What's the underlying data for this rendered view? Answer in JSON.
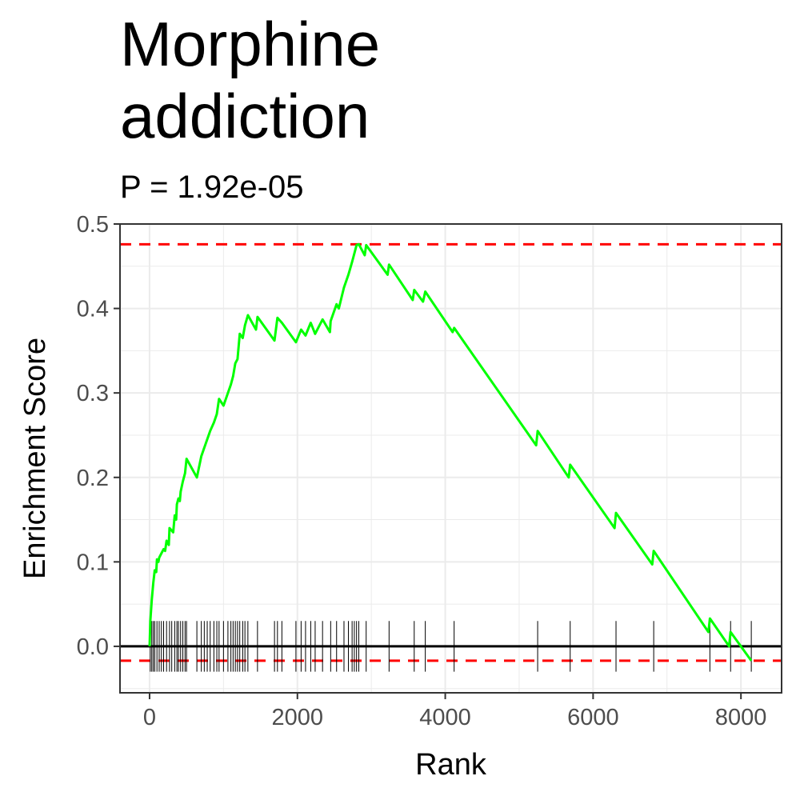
{
  "chart_data": {
    "type": "line",
    "title": "Morphine\naddiction",
    "subtitle": "P = 1.92e-05",
    "xlabel": "Rank",
    "ylabel": "Enrichment Score",
    "xlim": [
      -400,
      8550
    ],
    "ylim": [
      -0.055,
      0.5
    ],
    "xticks": [
      0,
      2000,
      4000,
      6000,
      8000
    ],
    "xtick_labels": [
      "0",
      "2000",
      "4000",
      "6000",
      "8000"
    ],
    "yticks": [
      0.0,
      0.1,
      0.2,
      0.3,
      0.4,
      0.5
    ],
    "ytick_labels": [
      "0.0",
      "0.1",
      "0.2",
      "0.3",
      "0.4",
      "0.5"
    ],
    "grid": true,
    "colors": {
      "line": "#00ff00",
      "reference": "#ff0000",
      "zero": "#000000",
      "grid": "#ebebeb"
    },
    "max_es": 0.476,
    "min_es": -0.017,
    "hit_ranks": [
      10,
      30,
      50,
      70,
      100,
      130,
      160,
      190,
      230,
      270,
      300,
      340,
      370,
      390,
      420,
      450,
      480,
      500,
      640,
      700,
      740,
      780,
      820,
      870,
      910,
      940,
      1000,
      1060,
      1100,
      1130,
      1160,
      1190,
      1220,
      1260,
      1290,
      1330,
      1460,
      1690,
      1730,
      1790,
      1980,
      2050,
      2110,
      2180,
      2240,
      2340,
      2450,
      2530,
      2630,
      2690,
      2740,
      2770,
      2800,
      2830,
      2930,
      3240,
      3580,
      3730,
      4120,
      5250,
      5690,
      6310,
      6820,
      7580,
      7860,
      8140
    ],
    "series": [
      {
        "values": [
          [
            0,
            0.0
          ],
          [
            10,
            0.03
          ],
          [
            30,
            0.055
          ],
          [
            50,
            0.075
          ],
          [
            70,
            0.09
          ],
          [
            90,
            0.088
          ],
          [
            100,
            0.103
          ],
          [
            120,
            0.1
          ],
          [
            130,
            0.105
          ],
          [
            160,
            0.11
          ],
          [
            190,
            0.115
          ],
          [
            210,
            0.113
          ],
          [
            230,
            0.125
          ],
          [
            260,
            0.12
          ],
          [
            270,
            0.14
          ],
          [
            320,
            0.135
          ],
          [
            340,
            0.155
          ],
          [
            360,
            0.15
          ],
          [
            370,
            0.168
          ],
          [
            390,
            0.175
          ],
          [
            410,
            0.172
          ],
          [
            420,
            0.183
          ],
          [
            450,
            0.195
          ],
          [
            480,
            0.205
          ],
          [
            500,
            0.222
          ],
          [
            640,
            0.2
          ],
          [
            700,
            0.225
          ],
          [
            740,
            0.235
          ],
          [
            780,
            0.245
          ],
          [
            820,
            0.255
          ],
          [
            870,
            0.265
          ],
          [
            910,
            0.275
          ],
          [
            940,
            0.293
          ],
          [
            1000,
            0.285
          ],
          [
            1060,
            0.3
          ],
          [
            1100,
            0.31
          ],
          [
            1130,
            0.32
          ],
          [
            1160,
            0.335
          ],
          [
            1190,
            0.34
          ],
          [
            1220,
            0.37
          ],
          [
            1260,
            0.365
          ],
          [
            1290,
            0.38
          ],
          [
            1330,
            0.392
          ],
          [
            1440,
            0.375
          ],
          [
            1460,
            0.39
          ],
          [
            1690,
            0.362
          ],
          [
            1730,
            0.389
          ],
          [
            1790,
            0.383
          ],
          [
            1980,
            0.36
          ],
          [
            2050,
            0.375
          ],
          [
            2110,
            0.368
          ],
          [
            2180,
            0.383
          ],
          [
            2240,
            0.37
          ],
          [
            2340,
            0.387
          ],
          [
            2440,
            0.372
          ],
          [
            2450,
            0.385
          ],
          [
            2530,
            0.405
          ],
          [
            2560,
            0.4
          ],
          [
            2630,
            0.425
          ],
          [
            2690,
            0.44
          ],
          [
            2740,
            0.455
          ],
          [
            2770,
            0.465
          ],
          [
            2800,
            0.475
          ],
          [
            2830,
            0.476
          ],
          [
            2910,
            0.463
          ],
          [
            2930,
            0.475
          ],
          [
            3220,
            0.44
          ],
          [
            3240,
            0.452
          ],
          [
            3560,
            0.41
          ],
          [
            3580,
            0.422
          ],
          [
            3700,
            0.408
          ],
          [
            3730,
            0.42
          ],
          [
            4100,
            0.372
          ],
          [
            4120,
            0.377
          ],
          [
            5230,
            0.238
          ],
          [
            5250,
            0.255
          ],
          [
            5670,
            0.2
          ],
          [
            5690,
            0.215
          ],
          [
            6290,
            0.14
          ],
          [
            6310,
            0.158
          ],
          [
            6800,
            0.097
          ],
          [
            6820,
            0.113
          ],
          [
            7560,
            0.017
          ],
          [
            7580,
            0.033
          ],
          [
            7840,
            0.0
          ],
          [
            7860,
            0.017
          ],
          [
            8140,
            -0.017
          ]
        ]
      }
    ]
  }
}
